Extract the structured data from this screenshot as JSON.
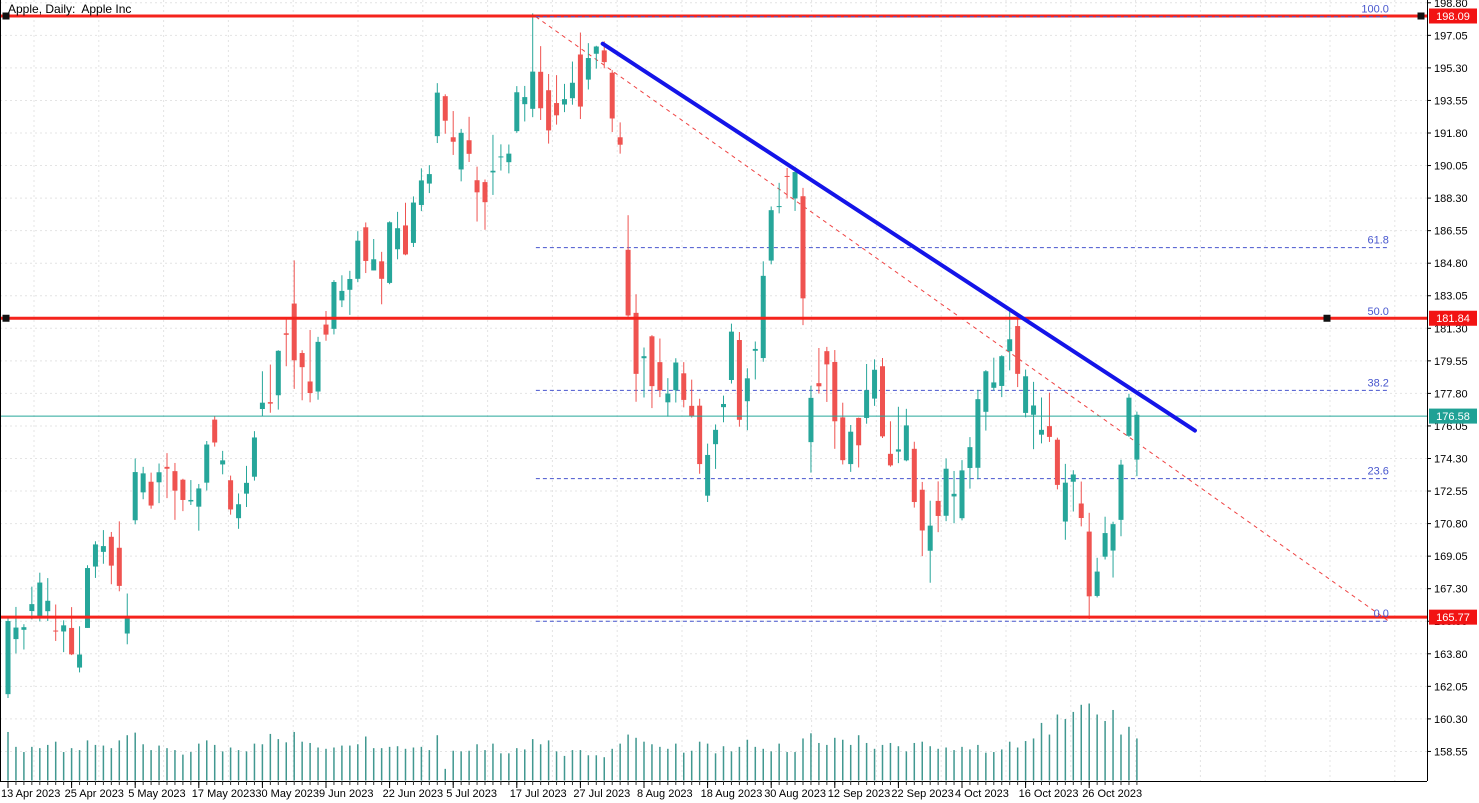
{
  "title": "Apple, Daily:  Apple Inc",
  "colors": {
    "background": "#ffffff",
    "grid": "#e4e4e4",
    "candle_up": "#26a69a",
    "candle_down": "#ef5350",
    "volume": "#419890",
    "red_line": "#f5231c",
    "red_tag": "#f21313",
    "teal_line": "#26a69a",
    "teal_tag": "#1fa195",
    "fib_blue": "#4756ce",
    "fib_diagonal_red": "#ef4343",
    "trendline_blue": "#1414e8",
    "axis_text": "#000000",
    "handle_black": "#111111"
  },
  "chart_data": {
    "type": "candlestick",
    "symbol": "Apple",
    "timeframe": "Daily",
    "company": "Apple Inc",
    "y_axis_ticks": [
      "198.80",
      "197.05",
      "195.30",
      "193.55",
      "191.80",
      "190.05",
      "188.30",
      "186.55",
      "184.80",
      "183.05",
      "181.30",
      "179.55",
      "177.80",
      "176.05",
      "174.30",
      "172.55",
      "170.80",
      "169.05",
      "167.30",
      "165.55",
      "163.80",
      "162.05",
      "160.30",
      "158.55"
    ],
    "x_axis_labels": [
      {
        "label": "13 Apr 2023",
        "i": 0
      },
      {
        "label": "25 Apr 2023",
        "i": 8
      },
      {
        "label": "5 May 2023",
        "i": 16
      },
      {
        "label": "17 May 2023",
        "i": 24
      },
      {
        "label": "30 May 2023",
        "i": 32
      },
      {
        "label": "9 Jun 2023",
        "i": 40
      },
      {
        "label": "22 Jun 2023",
        "i": 48
      },
      {
        "label": "5 Jul 2023",
        "i": 56
      },
      {
        "label": "17 Jul 2023",
        "i": 64
      },
      {
        "label": "27 Jul 2023",
        "i": 72
      },
      {
        "label": "8 Aug 2023",
        "i": 80
      },
      {
        "label": "18 Aug 2023",
        "i": 88
      },
      {
        "label": "30 Aug 2023",
        "i": 96
      },
      {
        "label": "12 Sep 2023",
        "i": 104
      },
      {
        "label": "22 Sep 2023",
        "i": 112
      },
      {
        "label": "4 Oct 2023",
        "i": 120
      },
      {
        "label": "16 Oct 2023",
        "i": 128
      },
      {
        "label": "26 Oct 2023",
        "i": 136
      }
    ],
    "candles": [
      [
        "04-13",
        161.63,
        165.8,
        161.42,
        165.56,
        75
      ],
      [
        "04-14",
        164.59,
        166.32,
        163.82,
        165.21,
        52
      ],
      [
        "04-17",
        165.09,
        165.39,
        164.03,
        165.23,
        44
      ],
      [
        "04-18",
        166.1,
        167.41,
        165.65,
        166.47,
        52
      ],
      [
        "04-19",
        165.8,
        168.16,
        165.54,
        167.63,
        50
      ],
      [
        "04-20",
        166.09,
        167.87,
        165.56,
        166.65,
        55
      ],
      [
        "04-21",
        165.05,
        166.45,
        164.49,
        165.02,
        60
      ],
      [
        "04-24",
        165.0,
        165.6,
        163.89,
        165.33,
        44
      ],
      [
        "04-25",
        165.19,
        166.31,
        163.73,
        163.77,
        50
      ],
      [
        "04-26",
        163.06,
        165.28,
        162.8,
        163.76,
        47
      ],
      [
        "04-27",
        165.19,
        168.56,
        165.19,
        168.41,
        62
      ],
      [
        "04-28",
        168.49,
        169.85,
        167.88,
        169.68,
        55
      ],
      [
        "05-01",
        169.28,
        170.45,
        168.64,
        169.59,
        54
      ],
      [
        "05-02",
        170.09,
        170.35,
        167.54,
        168.54,
        50
      ],
      [
        "05-03",
        169.5,
        170.92,
        167.16,
        167.45,
        62
      ],
      [
        "05-04",
        164.89,
        167.04,
        164.31,
        165.79,
        70
      ],
      [
        "05-05",
        170.98,
        174.3,
        170.76,
        173.57,
        74
      ],
      [
        "05-08",
        172.48,
        173.85,
        172.11,
        173.5,
        56
      ],
      [
        "05-09",
        173.05,
        173.54,
        171.6,
        171.77,
        47
      ],
      [
        "05-10",
        173.02,
        174.03,
        171.9,
        173.56,
        54
      ],
      [
        "05-11",
        173.85,
        174.59,
        172.17,
        173.75,
        50
      ],
      [
        "05-12",
        173.62,
        174.06,
        171.0,
        172.57,
        47
      ],
      [
        "05-15",
        173.16,
        173.21,
        171.47,
        172.07,
        40
      ],
      [
        "05-16",
        171.99,
        173.14,
        171.8,
        172.07,
        44
      ],
      [
        "05-17",
        171.71,
        172.93,
        170.42,
        172.69,
        57
      ],
      [
        "05-18",
        173.0,
        175.24,
        172.58,
        175.05,
        62
      ],
      [
        "05-19",
        176.39,
        176.57,
        174.94,
        175.16,
        55
      ],
      [
        "05-22",
        173.98,
        174.71,
        173.45,
        174.2,
        45
      ],
      [
        "05-23",
        173.13,
        173.38,
        171.28,
        171.56,
        51
      ],
      [
        "05-24",
        171.09,
        172.42,
        170.52,
        171.84,
        47
      ],
      [
        "05-25",
        172.41,
        173.9,
        171.69,
        172.99,
        45
      ],
      [
        "05-26",
        173.32,
        175.77,
        173.11,
        175.43,
        57
      ],
      [
        "05-30",
        176.96,
        178.99,
        176.57,
        177.3,
        56
      ],
      [
        "05-31",
        177.33,
        179.35,
        176.76,
        177.25,
        72
      ],
      [
        "06-01",
        177.7,
        180.12,
        176.93,
        180.09,
        64
      ],
      [
        "06-02",
        181.03,
        181.78,
        179.26,
        180.95,
        59
      ],
      [
        "06-05",
        182.63,
        184.95,
        178.04,
        179.58,
        75
      ],
      [
        "06-06",
        179.97,
        180.12,
        177.43,
        179.21,
        60
      ],
      [
        "06-07",
        178.44,
        181.21,
        177.32,
        177.82,
        58
      ],
      [
        "06-08",
        177.9,
        180.84,
        177.46,
        180.57,
        51
      ],
      [
        "06-09",
        181.5,
        182.23,
        180.63,
        180.96,
        49
      ],
      [
        "06-12",
        181.27,
        183.89,
        180.97,
        183.79,
        51
      ],
      [
        "06-13",
        182.8,
        184.15,
        182.44,
        183.31,
        54
      ],
      [
        "06-14",
        183.37,
        184.39,
        182.02,
        183.95,
        54
      ],
      [
        "06-15",
        183.96,
        186.52,
        183.78,
        186.01,
        56
      ],
      [
        "06-16",
        186.73,
        186.99,
        184.27,
        184.92,
        68
      ],
      [
        "06-20",
        184.41,
        186.1,
        184.41,
        185.01,
        50
      ],
      [
        "06-21",
        184.9,
        185.41,
        182.59,
        183.96,
        50
      ],
      [
        "06-22",
        183.74,
        187.05,
        183.67,
        187.0,
        52
      ],
      [
        "06-23",
        185.55,
        187.56,
        185.01,
        186.68,
        53
      ],
      [
        "06-26",
        186.83,
        188.05,
        185.23,
        185.27,
        49
      ],
      [
        "06-27",
        185.89,
        188.39,
        185.67,
        188.06,
        51
      ],
      [
        "06-28",
        187.93,
        189.9,
        187.6,
        189.25,
        52
      ],
      [
        "06-29",
        189.08,
        190.07,
        188.57,
        189.59,
        47
      ],
      [
        "06-30",
        191.63,
        194.48,
        191.26,
        193.97,
        70
      ],
      [
        "07-03",
        193.78,
        193.88,
        191.76,
        192.46,
        18
      ],
      [
        "07-05",
        191.57,
        192.98,
        190.62,
        191.33,
        46
      ],
      [
        "07-06",
        189.84,
        192.02,
        189.2,
        191.81,
        45
      ],
      [
        "07-07",
        191.41,
        192.67,
        190.24,
        190.68,
        46
      ],
      [
        "07-10",
        189.26,
        189.99,
        187.04,
        188.61,
        56
      ],
      [
        "07-11",
        189.16,
        189.3,
        186.6,
        188.08,
        47
      ],
      [
        "07-12",
        189.68,
        191.7,
        188.47,
        189.77,
        57
      ],
      [
        "07-13",
        190.5,
        191.19,
        189.78,
        190.54,
        42
      ],
      [
        "07-14",
        190.23,
        191.18,
        189.63,
        190.69,
        42
      ],
      [
        "07-17",
        191.9,
        194.32,
        191.81,
        193.99,
        50
      ],
      [
        "07-18",
        193.35,
        194.33,
        192.42,
        193.73,
        48
      ],
      [
        "07-19",
        193.1,
        198.23,
        192.65,
        195.1,
        64
      ],
      [
        "07-20",
        195.09,
        196.47,
        192.5,
        193.13,
        56
      ],
      [
        "07-21",
        194.1,
        194.97,
        191.23,
        191.94,
        62
      ],
      [
        "07-24",
        193.41,
        194.91,
        192.25,
        192.75,
        45
      ],
      [
        "07-25",
        193.33,
        194.44,
        192.92,
        193.62,
        38
      ],
      [
        "07-26",
        193.67,
        195.64,
        193.32,
        194.5,
        47
      ],
      [
        "07-27",
        196.02,
        197.2,
        192.55,
        193.22,
        47
      ],
      [
        "07-28",
        194.67,
        196.63,
        194.14,
        195.83,
        39
      ],
      [
        "07-31",
        196.06,
        196.49,
        195.26,
        196.45,
        39
      ],
      [
        "08-01",
        196.24,
        196.73,
        195.28,
        195.61,
        36
      ],
      [
        "08-02",
        195.04,
        195.18,
        191.85,
        192.58,
        49
      ],
      [
        "08-03",
        191.57,
        192.37,
        190.69,
        191.17,
        57
      ],
      [
        "08-04",
        185.52,
        187.38,
        181.92,
        181.99,
        71
      ],
      [
        "08-07",
        182.13,
        183.13,
        177.35,
        178.85,
        66
      ],
      [
        "08-08",
        179.69,
        180.27,
        177.58,
        179.8,
        60
      ],
      [
        "08-09",
        180.87,
        180.93,
        177.01,
        178.19,
        56
      ],
      [
        "08-10",
        179.48,
        180.75,
        177.6,
        177.97,
        52
      ],
      [
        "08-11",
        177.32,
        178.62,
        176.55,
        177.79,
        49
      ],
      [
        "08-14",
        177.97,
        179.69,
        177.31,
        179.46,
        57
      ],
      [
        "08-15",
        178.88,
        179.48,
        177.05,
        177.45,
        43
      ],
      [
        "08-16",
        177.13,
        178.54,
        176.5,
        176.57,
        46
      ],
      [
        "08-17",
        177.14,
        177.51,
        173.48,
        174.0,
        60
      ],
      [
        "08-18",
        172.3,
        175.1,
        171.96,
        174.49,
        57
      ],
      [
        "08-21",
        175.07,
        176.13,
        173.74,
        175.84,
        42
      ],
      [
        "08-22",
        177.06,
        177.68,
        176.25,
        177.23,
        53
      ],
      [
        "08-23",
        178.52,
        181.55,
        178.33,
        181.12,
        45
      ],
      [
        "08-24",
        180.67,
        181.1,
        176.01,
        176.38,
        52
      ],
      [
        "08-25",
        177.38,
        179.15,
        175.82,
        178.61,
        63
      ],
      [
        "08-28",
        180.09,
        180.59,
        178.55,
        180.19,
        52
      ],
      [
        "08-29",
        179.7,
        184.9,
        179.5,
        184.12,
        49
      ],
      [
        "08-30",
        184.94,
        187.85,
        184.74,
        187.65,
        45
      ],
      [
        "08-31",
        187.84,
        189.12,
        187.48,
        187.87,
        57
      ],
      [
        "09-01",
        189.49,
        189.92,
        188.28,
        189.46,
        44
      ],
      [
        "09-05",
        188.28,
        189.98,
        187.61,
        189.7,
        44
      ],
      [
        "09-06",
        188.4,
        188.85,
        181.47,
        182.91,
        65
      ],
      [
        "09-07",
        175.18,
        178.21,
        173.54,
        177.56,
        73
      ],
      [
        "09-08",
        178.35,
        180.24,
        177.79,
        178.18,
        58
      ],
      [
        "09-11",
        180.07,
        180.3,
        177.34,
        179.36,
        55
      ],
      [
        "09-12",
        179.49,
        180.13,
        174.82,
        176.3,
        66
      ],
      [
        "09-13",
        176.51,
        177.3,
        173.98,
        174.21,
        63
      ],
      [
        "09-14",
        174.0,
        176.1,
        173.58,
        175.74,
        55
      ],
      [
        "09-15",
        176.48,
        176.5,
        173.82,
        175.01,
        70
      ],
      [
        "09-18",
        176.48,
        179.38,
        176.17,
        177.97,
        58
      ],
      [
        "09-19",
        177.52,
        179.63,
        177.13,
        179.07,
        49
      ],
      [
        "09-20",
        179.26,
        179.7,
        175.4,
        175.49,
        55
      ],
      [
        "09-21",
        174.55,
        176.3,
        173.86,
        173.93,
        58
      ],
      [
        "09-22",
        174.67,
        177.08,
        174.05,
        174.79,
        53
      ],
      [
        "09-25",
        174.2,
        176.97,
        174.15,
        176.08,
        45
      ],
      [
        "09-26",
        174.82,
        175.2,
        171.66,
        171.96,
        58
      ],
      [
        "09-27",
        172.62,
        173.04,
        169.05,
        170.43,
        60
      ],
      [
        "09-28",
        169.34,
        172.03,
        167.62,
        170.69,
        53
      ],
      [
        "09-29",
        172.02,
        173.07,
        170.34,
        171.21,
        49
      ],
      [
        "10-02",
        171.22,
        174.3,
        170.93,
        173.75,
        51
      ],
      [
        "10-03",
        172.26,
        173.63,
        170.82,
        172.4,
        47
      ],
      [
        "10-04",
        171.09,
        174.21,
        170.97,
        173.66,
        52
      ],
      [
        "10-05",
        173.79,
        175.45,
        172.68,
        174.91,
        48
      ],
      [
        "10-06",
        173.8,
        177.99,
        173.18,
        177.49,
        55
      ],
      [
        "10-09",
        176.81,
        179.05,
        175.8,
        178.99,
        43
      ],
      [
        "10-10",
        178.1,
        179.72,
        177.95,
        178.39,
        44
      ],
      [
        "10-11",
        178.2,
        179.85,
        177.6,
        179.8,
        48
      ],
      [
        "10-12",
        180.07,
        182.34,
        179.04,
        180.71,
        60
      ],
      [
        "10-13",
        181.42,
        181.93,
        178.14,
        178.85,
        51
      ],
      [
        "10-16",
        176.75,
        179.08,
        176.51,
        178.72,
        61
      ],
      [
        "10-17",
        176.65,
        178.42,
        174.8,
        177.15,
        65
      ],
      [
        "10-18",
        175.58,
        177.58,
        175.11,
        175.84,
        89
      ],
      [
        "10-19",
        176.04,
        177.84,
        175.19,
        175.46,
        71
      ],
      [
        "10-20",
        175.31,
        175.42,
        172.64,
        172.88,
        102
      ],
      [
        "10-23",
        170.91,
        174.01,
        169.93,
        173.0,
        95
      ],
      [
        "10-24",
        173.05,
        173.67,
        171.45,
        173.44,
        106
      ],
      [
        "10-25",
        171.88,
        173.06,
        170.65,
        171.1,
        117
      ],
      [
        "10-26",
        170.37,
        171.38,
        165.67,
        166.89,
        119
      ],
      [
        "10-27",
        166.91,
        168.96,
        166.83,
        168.22,
        102
      ],
      [
        "10-30",
        169.02,
        171.17,
        168.87,
        170.29,
        92
      ],
      [
        "10-31",
        169.35,
        170.9,
        167.9,
        170.77,
        109
      ],
      [
        "11-01",
        171.0,
        174.23,
        170.12,
        173.97,
        71
      ],
      [
        "11-02",
        175.52,
        177.78,
        175.46,
        177.57,
        83
      ],
      [
        "11-03",
        174.24,
        176.82,
        173.35,
        176.65,
        65
      ]
    ],
    "price_lines": [
      {
        "price": 198.09,
        "label": "198.09",
        "handles": [
          6,
          1421
        ]
      },
      {
        "price": 181.84,
        "label": "181.84",
        "handles": [
          6,
          1327
        ]
      },
      {
        "price": 165.77,
        "label": "165.77",
        "handles": []
      }
    ],
    "current_price_line": {
      "price": 176.58,
      "label": "176.58"
    },
    "fibonacci": {
      "price_0": 165.55,
      "price_100": 198.05,
      "index_start": 66.4,
      "index_end": 173.7,
      "levels": [
        {
          "value": 0,
          "label": "0.0"
        },
        {
          "value": 23.6,
          "label": "23.6"
        },
        {
          "value": 38.2,
          "label": "38.2"
        },
        {
          "value": 50,
          "label": "50.0"
        },
        {
          "value": 61.8,
          "label": "61.8"
        },
        {
          "value": 100,
          "label": "100.0"
        }
      ]
    },
    "trendline": {
      "index1": 74.8,
      "price1": 196.6,
      "index2": 149.3,
      "price2": 175.8
    }
  }
}
